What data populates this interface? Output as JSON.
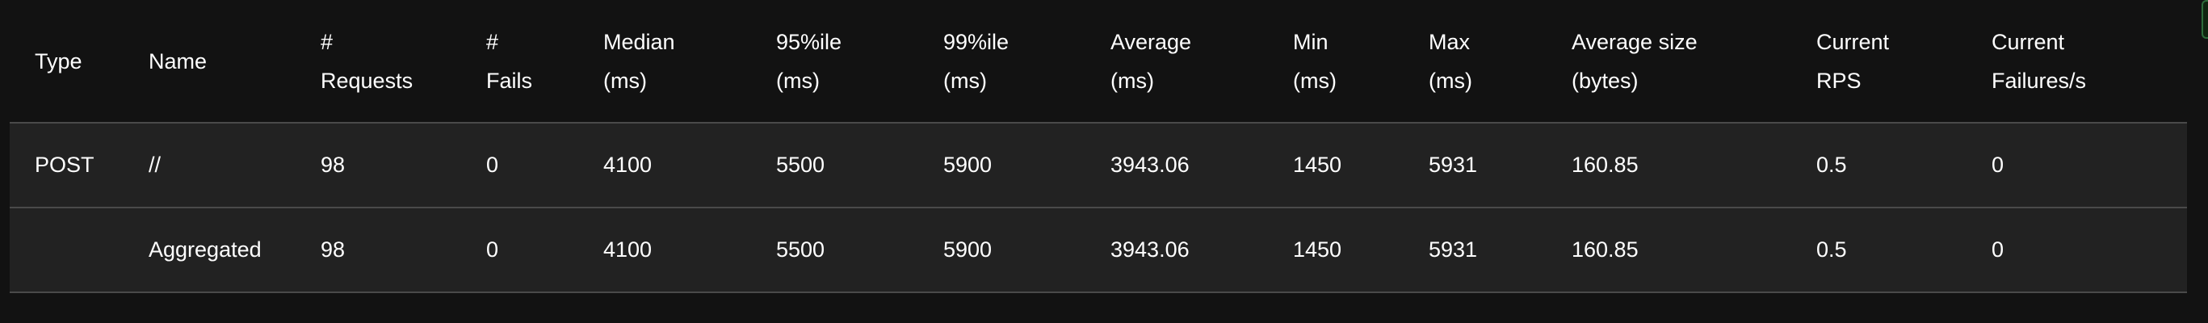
{
  "table": {
    "headers": [
      {
        "line1": "Type",
        "line2": ""
      },
      {
        "line1": "Name",
        "line2": ""
      },
      {
        "line1": "#",
        "line2": "Requests"
      },
      {
        "line1": "#",
        "line2": "Fails"
      },
      {
        "line1": "Median",
        "line2": "(ms)"
      },
      {
        "line1": "95%ile",
        "line2": "(ms)"
      },
      {
        "line1": "99%ile",
        "line2": "(ms)"
      },
      {
        "line1": "Average",
        "line2": "(ms)"
      },
      {
        "line1": "Min",
        "line2": "(ms)"
      },
      {
        "line1": "Max",
        "line2": "(ms)"
      },
      {
        "line1": "Average size",
        "line2": "(bytes)"
      },
      {
        "line1": "Current",
        "line2": "RPS"
      },
      {
        "line1": "Current",
        "line2": "Failures/s"
      }
    ],
    "rows": [
      [
        "POST",
        "//",
        "98",
        "0",
        "4100",
        "5500",
        "5900",
        "3943.06",
        "1450",
        "5931",
        "160.85",
        "0.5",
        "0"
      ],
      [
        "",
        "Aggregated",
        "98",
        "0",
        "4100",
        "5500",
        "5900",
        "3943.06",
        "1450",
        "5931",
        "160.85",
        "0.5",
        "0"
      ]
    ]
  },
  "colors": {
    "background": "#121212",
    "row_background": "#222222",
    "divider": "#4a4a4a",
    "text": "#ffffff"
  }
}
